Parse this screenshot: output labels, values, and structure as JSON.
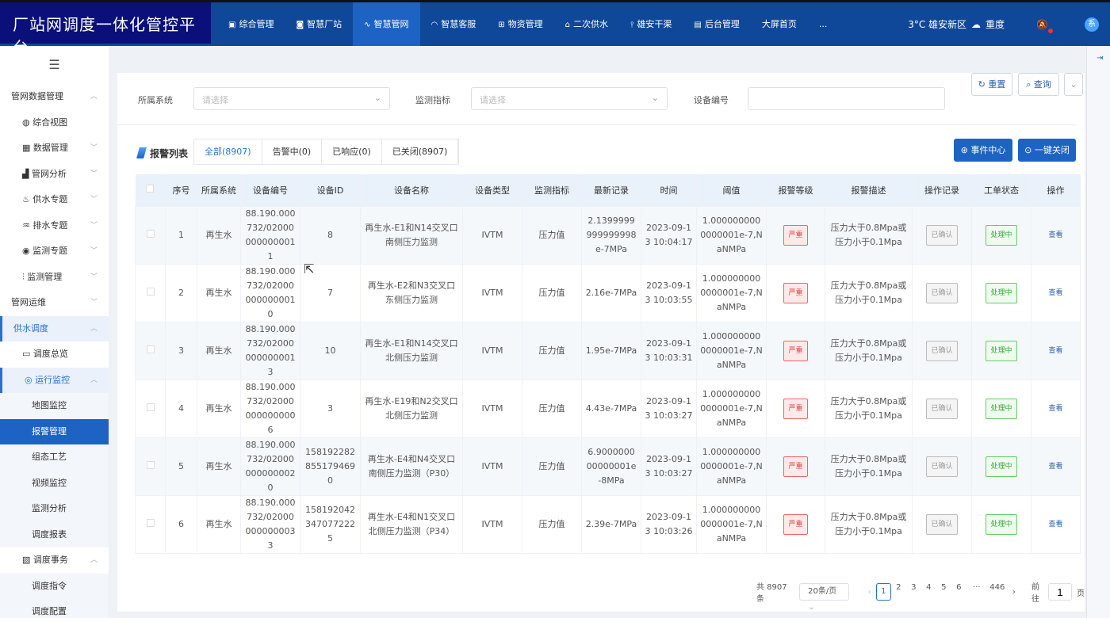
{
  "header": {
    "title": "厂站网调度一体化管控平台",
    "nav": [
      {
        "label": "综合管理",
        "icon": "chart-icon"
      },
      {
        "label": "智慧厂站",
        "icon": "station-icon"
      },
      {
        "label": "智慧管网",
        "icon": "pipe-icon",
        "active": true
      },
      {
        "label": "智慧客服",
        "icon": "headset-icon"
      },
      {
        "label": "物资管理",
        "icon": "grid-icon"
      },
      {
        "label": "二次供水",
        "icon": "building-icon"
      },
      {
        "label": "雄安干渠",
        "icon": "canal-icon"
      },
      {
        "label": "后台管理",
        "icon": "calendar-icon"
      },
      {
        "label": "大屏首页",
        "icon": ""
      },
      {
        "label": "...",
        "icon": ""
      }
    ],
    "weather": "3°C 雄安新区",
    "weather_icon": "cloud-icon",
    "pollution": "重度",
    "avatar": "系"
  },
  "sidebar": {
    "items": [
      {
        "label": "管网数据管理",
        "level": 1,
        "chevron": "up"
      },
      {
        "label": "综合视图",
        "level": 2,
        "icon": "globe-icon"
      },
      {
        "label": "数据管理",
        "level": 2,
        "icon": "data-icon",
        "chevron": "down"
      },
      {
        "label": "管网分析",
        "level": 2,
        "icon": "analysis-icon",
        "chevron": "down"
      },
      {
        "label": "供水专题",
        "level": 2,
        "icon": "water-supply-icon",
        "chevron": "down"
      },
      {
        "label": "排水专题",
        "level": 2,
        "icon": "drain-icon",
        "chevron": "down"
      },
      {
        "label": "监测专题",
        "level": 2,
        "icon": "monitor-icon",
        "chevron": "down"
      },
      {
        "label": "监测管理",
        "level": 2,
        "icon": "sliders-icon",
        "chevron": "down"
      },
      {
        "label": "管网运维",
        "level": 1,
        "chevron": "down"
      },
      {
        "label": "供水调度",
        "level": 1,
        "chevron": "up",
        "open": true
      },
      {
        "label": "调度总览",
        "level": 2,
        "icon": "dashboard-icon"
      },
      {
        "label": "运行监控",
        "level": 2,
        "icon": "location-icon",
        "chevron": "up",
        "open": true
      },
      {
        "label": "地图监控",
        "level": 3
      },
      {
        "label": "报警管理",
        "level": 3,
        "selected": true
      },
      {
        "label": "组态工艺",
        "level": 3
      },
      {
        "label": "视频监控",
        "level": 3
      },
      {
        "label": "监测分析",
        "level": 3
      },
      {
        "label": "调度报表",
        "level": 3
      },
      {
        "label": "调度事务",
        "level": 2,
        "icon": "task-icon",
        "chevron": "up"
      },
      {
        "label": "调度指令",
        "level": 3
      },
      {
        "label": "调度配置",
        "level": 3
      }
    ]
  },
  "filters": {
    "system_label": "所属系统",
    "system_placeholder": "请选择",
    "indicator_label": "监测指标",
    "indicator_placeholder": "请选择",
    "device_no_label": "设备编号",
    "device_no_value": "",
    "reset": "重置",
    "query": "查询"
  },
  "list": {
    "title": "报警列表",
    "tabs": [
      "全部(8907)",
      "告警中(0)",
      "已响应(0)",
      "已关闭(8907)"
    ],
    "event_center": "事件中心",
    "close_all": "一键关闭"
  },
  "table": {
    "columns": [
      "",
      "序号",
      "所属系统",
      "设备编号",
      "设备ID",
      "设备名称",
      "设备类型",
      "监测指标",
      "最新记录",
      "时间",
      "阈值",
      "报警等级",
      "报警描述",
      "操作记录",
      "工单状态",
      "操作"
    ],
    "rows": [
      {
        "no": "1",
        "sys": "再生水",
        "code": "88.190.000732/020000000000011",
        "id": "8",
        "name": "再生水-E1和N14交叉口南侧压力监测",
        "type": "IVTM",
        "ind": "压力值",
        "latest": "2.1399999999999998e-7MPa",
        "time": "2023-09-13 10:04:17",
        "thr": "1.0000000000000001e-7,NaNMPa",
        "level": "严重",
        "desc": "压力大于0.8Mpa或压力小于0.1Mpa",
        "rec": "已确认",
        "status": "处理中",
        "op": "查看"
      },
      {
        "no": "2",
        "sys": "再生水",
        "code": "88.190.000732/020000000000010",
        "id": "7",
        "name": "再生水-E2和N3交叉口东侧压力监测",
        "type": "IVTM",
        "ind": "压力值",
        "latest": "2.16e-7MPa",
        "time": "2023-09-13 10:03:55",
        "thr": "1.0000000000000001e-7,NaNMPa",
        "level": "严重",
        "desc": "压力大于0.8Mpa或压力小于0.1Mpa",
        "rec": "已确认",
        "status": "处理中",
        "op": "查看"
      },
      {
        "no": "3",
        "sys": "再生水",
        "code": "88.190.000732/020000000000013",
        "id": "10",
        "name": "再生水-E1和N14交叉口北侧压力监测",
        "type": "IVTM",
        "ind": "压力值",
        "latest": "1.95e-7MPa",
        "time": "2023-09-13 10:03:31",
        "thr": "1.0000000000000001e-7,NaNMPa",
        "level": "严重",
        "desc": "压力大于0.8Mpa或压力小于0.1Mpa",
        "rec": "已确认",
        "status": "处理中",
        "op": "查看"
      },
      {
        "no": "4",
        "sys": "再生水",
        "code": "88.190.000732/020000000000006",
        "id": "3",
        "name": "再生水-E19和N2交叉口北侧压力监测",
        "type": "IVTM",
        "ind": "压力值",
        "latest": "4.43e-7MPa",
        "time": "2023-09-13 10:03:27",
        "thr": "1.0000000000000001e-7,NaNMPa",
        "level": "严重",
        "desc": "压力大于0.8Mpa或压力小于0.1Mpa",
        "rec": "已确认",
        "status": "处理中",
        "op": "查看"
      },
      {
        "no": "5",
        "sys": "再生水",
        "code": "88.190.000732/020000000000020",
        "id": "1581922828551794690",
        "name": "再生水-E4和N4交叉口南侧压力监测（P30）",
        "type": "IVTM",
        "ind": "压力值",
        "latest": "6.900000000000001e-8MPa",
        "time": "2023-09-13 10:03:27",
        "thr": "1.0000000000000001e-7,NaNMPa",
        "level": "严重",
        "desc": "压力大于0.8Mpa或压力小于0.1Mpa",
        "rec": "已确认",
        "status": "处理中",
        "op": "查看"
      },
      {
        "no": "6",
        "sys": "再生水",
        "code": "88.190.000732/020000000000033",
        "id": "1581920423470772225",
        "name": "再生水-E4和N1交叉口北侧压力监测（P34）",
        "type": "IVTM",
        "ind": "压力值",
        "latest": "2.39e-7MPa",
        "time": "2023-09-13 10:03:26",
        "thr": "1.0000000000000001e-7,NaNMPa",
        "level": "严重",
        "desc": "压力大于0.8Mpa或压力小于0.1Mpa",
        "rec": "已确认",
        "status": "处理中",
        "op": "查看"
      }
    ]
  },
  "pagination": {
    "total": "共 8907 条",
    "page_size": "20条/页",
    "pages": [
      "1",
      "2",
      "3",
      "4",
      "5",
      "6",
      "···",
      "446"
    ],
    "current": "1",
    "goto_label": "前往",
    "goto_value": "1",
    "page_unit": "页"
  },
  "colors": {
    "header": "#0f4799",
    "accent": "#1c63c4",
    "danger": "#e66",
    "success": "#6c6"
  }
}
